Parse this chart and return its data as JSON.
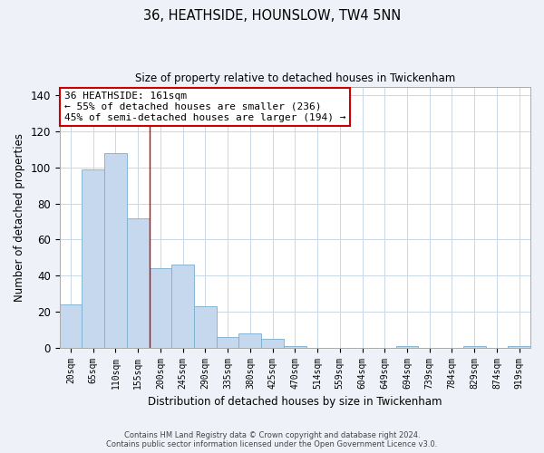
{
  "title": "36, HEATHSIDE, HOUNSLOW, TW4 5NN",
  "subtitle": "Size of property relative to detached houses in Twickenham",
  "xlabel": "Distribution of detached houses by size in Twickenham",
  "ylabel": "Number of detached properties",
  "bar_labels": [
    "20sqm",
    "65sqm",
    "110sqm",
    "155sqm",
    "200sqm",
    "245sqm",
    "290sqm",
    "335sqm",
    "380sqm",
    "425sqm",
    "470sqm",
    "514sqm",
    "559sqm",
    "604sqm",
    "649sqm",
    "694sqm",
    "739sqm",
    "784sqm",
    "829sqm",
    "874sqm",
    "919sqm"
  ],
  "bar_values": [
    24,
    99,
    108,
    72,
    44,
    46,
    23,
    6,
    8,
    5,
    1,
    0,
    0,
    0,
    0,
    1,
    0,
    0,
    1,
    0,
    1
  ],
  "bar_color": "#c5d8ed",
  "bar_edge_color": "#7aaed0",
  "ylim": [
    0,
    145
  ],
  "yticks": [
    0,
    20,
    40,
    60,
    80,
    100,
    120,
    140
  ],
  "annotation_title": "36 HEATHSIDE: 161sqm",
  "annotation_line1": "← 55% of detached houses are smaller (236)",
  "annotation_line2": "45% of semi-detached houses are larger (194) →",
  "annotation_box_color": "#ffffff",
  "annotation_box_edge": "#cc0000",
  "vline_x": 3.5,
  "footer1": "Contains HM Land Registry data © Crown copyright and database right 2024.",
  "footer2": "Contains public sector information licensed under the Open Government Licence v3.0.",
  "background_color": "#eef2f8",
  "plot_background": "#ffffff",
  "grid_color": "#c8d8e8"
}
